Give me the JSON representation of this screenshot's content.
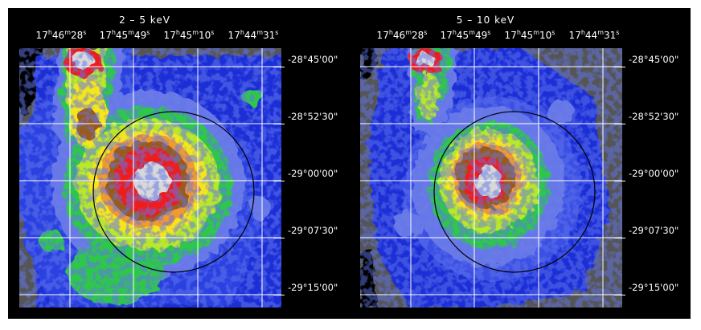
{
  "panels": [
    {
      "title": "2  –  5   keV",
      "ra_labels": [
        "17h46m28s",
        "17h45m49s",
        "17h45m10s",
        "17h44m31s"
      ],
      "ra_parts": [
        {
          "h": "17",
          "m": "46",
          "s": "28"
        },
        {
          "h": "17",
          "m": "45",
          "s": "49"
        },
        {
          "h": "17",
          "m": "45",
          "s": "10"
        },
        {
          "h": "17",
          "m": "44",
          "s": "31"
        }
      ],
      "dec_labels": [
        "-28°45'00\"",
        "-28°52'30\"",
        "-29°00'00\"",
        "-29°07'30\"",
        "-29°15'00\""
      ]
    },
    {
      "title": "5  –  10   keV",
      "ra_labels": [
        "17h46m28s",
        "17h45m49s",
        "17h45m10s",
        "17h44m31s"
      ],
      "ra_parts": [
        {
          "h": "17",
          "m": "46",
          "s": "28"
        },
        {
          "h": "17",
          "m": "45",
          "s": "49"
        },
        {
          "h": "17",
          "m": "45",
          "s": "10"
        },
        {
          "h": "17",
          "m": "44",
          "s": "31"
        }
      ],
      "dec_labels": [
        "-28°45'00\"",
        "-28°52'30\"",
        "-29°00'00\"",
        "-29°07'30\"",
        "-29°15'00\""
      ]
    }
  ],
  "colors": {
    "background": "#000000",
    "level_0": "#555555",
    "level_1": "#1f2fd6",
    "level_2": "#6a7ae6",
    "level_3": "#2ec84a",
    "level_4": "#b8e82a",
    "level_5": "#f5e61e",
    "level_6": "#f29a2e",
    "level_7": "#9a5a1e",
    "level_8": "#ee1a1a",
    "peak": "#d8d8d8",
    "grid": "#ffffff",
    "circle": "#000000"
  }
}
